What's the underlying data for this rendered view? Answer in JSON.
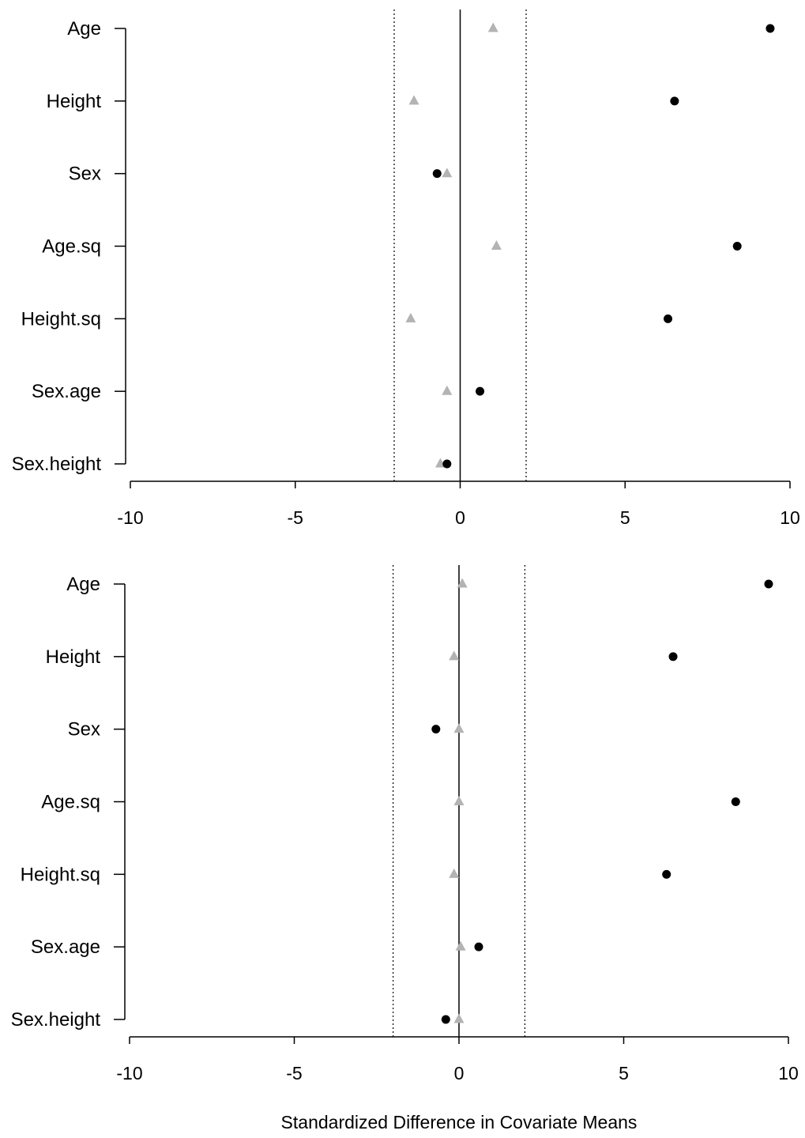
{
  "chart_data": [
    {
      "type": "scatter",
      "title": "",
      "xlabel": "",
      "ylabel": "",
      "xlim": [
        -10,
        10
      ],
      "xticks": [
        -10,
        -5,
        0,
        5,
        10
      ],
      "xtick_labels": [
        "-10",
        "-5",
        "0",
        "5",
        "10"
      ],
      "categories": [
        "Age",
        "Height",
        "Sex",
        "Age.sq",
        "Height.sq",
        "Sex.age",
        "Sex.height"
      ],
      "reference_lines": {
        "solid": 0,
        "dotted": [
          -2,
          2
        ]
      },
      "grid": false,
      "series": [
        {
          "marker": "circle",
          "color": "#000000",
          "values": [
            9.4,
            6.5,
            -0.7,
            8.4,
            6.3,
            0.6,
            -0.4
          ]
        },
        {
          "marker": "triangle",
          "color": "#b3b3b3",
          "values": [
            1.0,
            -1.4,
            -0.4,
            1.1,
            -1.5,
            -0.4,
            -0.6
          ]
        }
      ]
    },
    {
      "type": "scatter",
      "title": "",
      "xlabel": "Standardized Difference in Covariate Means",
      "ylabel": "",
      "xlim": [
        -10,
        10
      ],
      "xticks": [
        -10,
        -5,
        0,
        5,
        10
      ],
      "xtick_labels": [
        "-10",
        "-5",
        "0",
        "5",
        "10"
      ],
      "categories": [
        "Age",
        "Height",
        "Sex",
        "Age.sq",
        "Height.sq",
        "Sex.age",
        "Sex.height"
      ],
      "reference_lines": {
        "solid": 0,
        "dotted": [
          -2,
          2
        ]
      },
      "grid": false,
      "series": [
        {
          "marker": "circle",
          "color": "#000000",
          "values": [
            9.4,
            6.5,
            -0.7,
            8.4,
            6.3,
            0.6,
            -0.4
          ]
        },
        {
          "marker": "triangle",
          "color": "#b3b3b3",
          "values": [
            0.1,
            -0.15,
            0.0,
            0.0,
            -0.15,
            0.05,
            0.0
          ]
        }
      ]
    }
  ]
}
